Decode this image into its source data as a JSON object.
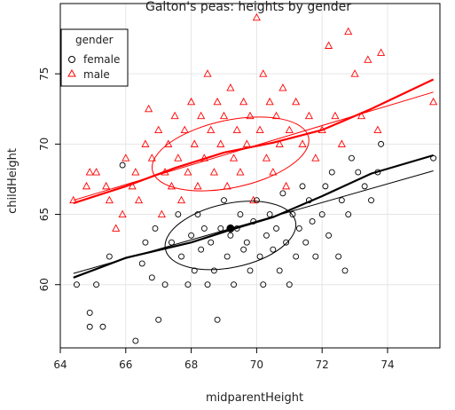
{
  "chart_data": {
    "type": "scatter",
    "title": "Galton's peas: heights by gender",
    "xlabel": "midparentHeight",
    "ylabel": "childHeight",
    "xlim": [
      64.0,
      75.6
    ],
    "ylim": [
      55.5,
      80.0
    ],
    "x_ticks": [
      64,
      66,
      68,
      70,
      72,
      74
    ],
    "y_ticks": [
      60,
      65,
      70,
      75
    ],
    "grid": true,
    "legend": {
      "title": "gender",
      "position": "top-left",
      "entries": [
        {
          "label": "female",
          "marker": "circle",
          "color": "#000000"
        },
        {
          "label": "male",
          "marker": "triangle",
          "color": "#ff0000"
        }
      ]
    },
    "series": [
      {
        "name": "female",
        "marker": "circle",
        "color": "#000000",
        "points": [
          [
            64.5,
            60
          ],
          [
            64.9,
            57
          ],
          [
            64.9,
            58
          ],
          [
            65.1,
            60
          ],
          [
            65.3,
            57
          ],
          [
            65.5,
            62
          ],
          [
            65.9,
            68.5
          ],
          [
            66.3,
            56
          ],
          [
            66.5,
            61.5
          ],
          [
            66.6,
            63
          ],
          [
            66.8,
            60.5
          ],
          [
            66.9,
            64
          ],
          [
            67.0,
            57.5
          ],
          [
            67.2,
            60
          ],
          [
            67.4,
            63
          ],
          [
            67.6,
            65
          ],
          [
            67.7,
            62
          ],
          [
            67.9,
            60
          ],
          [
            68.0,
            63.5
          ],
          [
            68.1,
            61
          ],
          [
            68.2,
            65
          ],
          [
            68.3,
            62.5
          ],
          [
            68.4,
            64
          ],
          [
            68.5,
            60
          ],
          [
            68.6,
            63
          ],
          [
            68.7,
            61
          ],
          [
            68.8,
            57.5
          ],
          [
            68.9,
            64
          ],
          [
            69.0,
            66
          ],
          [
            69.1,
            62
          ],
          [
            69.2,
            63.5
          ],
          [
            69.3,
            60
          ],
          [
            69.4,
            64
          ],
          [
            69.5,
            65
          ],
          [
            69.6,
            62.5
          ],
          [
            69.7,
            63
          ],
          [
            69.8,
            61
          ],
          [
            69.9,
            64.5
          ],
          [
            70.0,
            66
          ],
          [
            70.1,
            62
          ],
          [
            70.2,
            60
          ],
          [
            70.3,
            63.5
          ],
          [
            70.4,
            65
          ],
          [
            70.5,
            62.5
          ],
          [
            70.6,
            64
          ],
          [
            70.7,
            61
          ],
          [
            70.8,
            66.5
          ],
          [
            70.9,
            63
          ],
          [
            71.0,
            60
          ],
          [
            71.1,
            65
          ],
          [
            71.2,
            62
          ],
          [
            71.3,
            64
          ],
          [
            71.4,
            67
          ],
          [
            71.5,
            63
          ],
          [
            71.6,
            66
          ],
          [
            71.7,
            64.5
          ],
          [
            71.8,
            62
          ],
          [
            72.0,
            65
          ],
          [
            72.1,
            67
          ],
          [
            72.2,
            63.5
          ],
          [
            72.3,
            68
          ],
          [
            72.5,
            62
          ],
          [
            72.6,
            66
          ],
          [
            72.7,
            61
          ],
          [
            72.8,
            65
          ],
          [
            72.9,
            69
          ],
          [
            73.1,
            68
          ],
          [
            73.3,
            67
          ],
          [
            73.5,
            66
          ],
          [
            73.7,
            68
          ],
          [
            73.8,
            70
          ],
          [
            75.4,
            69
          ]
        ]
      },
      {
        "name": "male",
        "marker": "triangle",
        "color": "#ff0000",
        "points": [
          [
            64.4,
            66
          ],
          [
            64.8,
            67
          ],
          [
            64.9,
            68
          ],
          [
            65.1,
            68
          ],
          [
            65.4,
            67
          ],
          [
            65.5,
            66
          ],
          [
            65.7,
            64
          ],
          [
            65.9,
            65
          ],
          [
            66.0,
            69
          ],
          [
            66.2,
            67
          ],
          [
            66.3,
            68
          ],
          [
            66.4,
            66
          ],
          [
            66.6,
            70
          ],
          [
            66.7,
            72.5
          ],
          [
            66.8,
            69
          ],
          [
            67.0,
            71
          ],
          [
            67.1,
            65
          ],
          [
            67.2,
            68
          ],
          [
            67.3,
            70
          ],
          [
            67.4,
            67
          ],
          [
            67.5,
            72
          ],
          [
            67.6,
            69
          ],
          [
            67.7,
            66
          ],
          [
            67.8,
            71
          ],
          [
            67.9,
            68
          ],
          [
            68.0,
            73
          ],
          [
            68.1,
            70
          ],
          [
            68.2,
            67
          ],
          [
            68.3,
            72
          ],
          [
            68.4,
            69
          ],
          [
            68.5,
            75
          ],
          [
            68.6,
            71
          ],
          [
            68.7,
            68
          ],
          [
            68.8,
            73
          ],
          [
            68.9,
            70
          ],
          [
            69.0,
            72
          ],
          [
            69.1,
            67
          ],
          [
            69.2,
            74
          ],
          [
            69.3,
            69
          ],
          [
            69.4,
            71
          ],
          [
            69.5,
            68
          ],
          [
            69.6,
            73
          ],
          [
            69.7,
            70
          ],
          [
            69.8,
            72
          ],
          [
            69.9,
            66
          ],
          [
            70.0,
            79
          ],
          [
            70.1,
            71
          ],
          [
            70.2,
            75
          ],
          [
            70.3,
            69
          ],
          [
            70.4,
            73
          ],
          [
            70.5,
            68
          ],
          [
            70.6,
            72
          ],
          [
            70.7,
            70
          ],
          [
            70.8,
            74
          ],
          [
            70.9,
            67
          ],
          [
            71.0,
            71
          ],
          [
            71.2,
            73
          ],
          [
            71.4,
            70
          ],
          [
            71.6,
            72
          ],
          [
            71.8,
            69
          ],
          [
            72.0,
            71
          ],
          [
            72.2,
            77
          ],
          [
            72.4,
            72
          ],
          [
            72.6,
            70
          ],
          [
            72.8,
            78
          ],
          [
            73.0,
            75
          ],
          [
            73.2,
            72
          ],
          [
            73.4,
            76
          ],
          [
            73.7,
            71
          ],
          [
            73.8,
            76.5
          ],
          [
            75.4,
            73
          ]
        ]
      }
    ],
    "fits": [
      {
        "series": "female",
        "kind": "linear",
        "color": "#000000",
        "points": [
          [
            64.4,
            60.8
          ],
          [
            75.4,
            68.1
          ]
        ]
      },
      {
        "series": "female",
        "kind": "smooth",
        "color": "#000000",
        "points": [
          [
            64.4,
            60.5
          ],
          [
            66,
            61.9
          ],
          [
            68,
            63.0
          ],
          [
            69.2,
            63.9
          ],
          [
            70.5,
            64.8
          ],
          [
            72,
            66.3
          ],
          [
            73.5,
            67.9
          ],
          [
            75.4,
            69.2
          ]
        ]
      },
      {
        "series": "male",
        "kind": "linear",
        "color": "#ff0000",
        "points": [
          [
            64.4,
            66.0
          ],
          [
            75.4,
            73.7
          ]
        ]
      },
      {
        "series": "male",
        "kind": "smooth",
        "color": "#ff0000",
        "points": [
          [
            64.4,
            65.8
          ],
          [
            66,
            67.0
          ],
          [
            67.5,
            68.3
          ],
          [
            69,
            69.4
          ],
          [
            70.5,
            70.1
          ],
          [
            72,
            71.0
          ],
          [
            73.5,
            72.5
          ],
          [
            75.4,
            74.6
          ]
        ]
      }
    ],
    "highlight_point": {
      "x": 69.2,
      "y": 64.0,
      "color": "#000000"
    }
  }
}
